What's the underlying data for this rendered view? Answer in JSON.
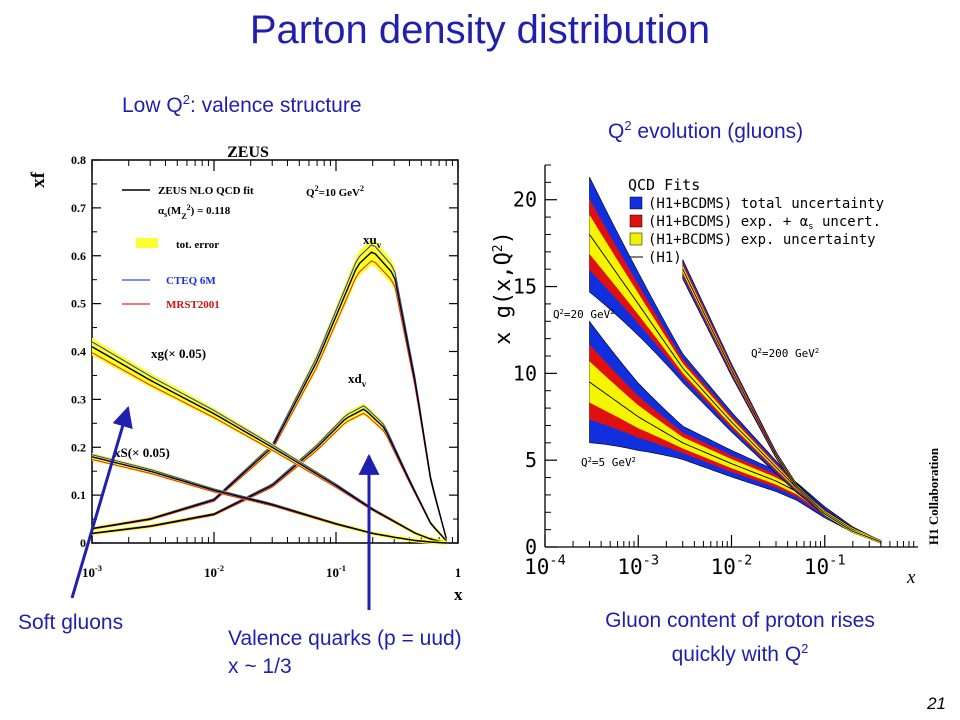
{
  "slide": {
    "title": "Parton density distribution",
    "left_subtitle_pre": "Low Q",
    "left_subtitle_sup": "2",
    "left_subtitle_post": ": valence structure",
    "right_subtitle_pre": "Q",
    "right_subtitle_sup": "2",
    "right_subtitle_post": " evolution (gluons)",
    "caption_soft": "Soft gluons",
    "caption_valence_1": "Valence quarks (p = uud)",
    "caption_valence_2": "x ~ 1/3",
    "caption_gluon_1": "Gluon content of proton rises",
    "caption_gluon_2_pre": "quickly with Q",
    "caption_gluon_2_sup": "2",
    "page_number": "21",
    "title_color": "#1f1fb0"
  },
  "chart_data": [
    {
      "type": "line",
      "title": "ZEUS",
      "ylabel": "xf",
      "xlabel": "x",
      "xscale": "log",
      "xlim": [
        0.001,
        1
      ],
      "ylim": [
        0,
        0.8
      ],
      "xticks": [
        "10^-3",
        "10^-2",
        "10^-1",
        "1"
      ],
      "yticks": [
        "0",
        "0.1",
        "0.2",
        "0.3",
        "0.4",
        "0.5",
        "0.6",
        "0.7",
        "0.8"
      ],
      "legend": {
        "fit": "ZEUS NLO QCD fit",
        "alpha_s": "αs(M²Z) = 0.118",
        "alpha_pre": "α",
        "alpha_sub": "s",
        "alpha_mid": "(M",
        "alpha_sup": "2",
        "alpha_sub2": "Z",
        "alpha_post": ") = 0.118",
        "error": "tot. error",
        "cteq": "CTEQ 6M",
        "mrst": "MRST2001",
        "q2_pre": "Q",
        "q2_sup": "2",
        "q2_post": "=10 GeV",
        "q2_sup2": "2",
        "q2": "Q²=10 GeV²"
      },
      "curve_labels": {
        "xuv": "xu",
        "xuv_sub": "v",
        "xdv": "xd",
        "xdv_sub": "v",
        "xg": "xg(× 0.05)",
        "xs": "xS(× 0.05)"
      },
      "series": [
        {
          "name": "xu_v",
          "x": [
            0.001,
            0.003,
            0.01,
            0.03,
            0.07,
            0.15,
            0.2,
            0.3,
            0.45,
            0.6,
            0.8
          ],
          "y": [
            0.03,
            0.05,
            0.09,
            0.2,
            0.38,
            0.58,
            0.61,
            0.56,
            0.33,
            0.13,
            0.01
          ]
        },
        {
          "name": "xd_v",
          "x": [
            0.001,
            0.003,
            0.01,
            0.03,
            0.07,
            0.12,
            0.17,
            0.25,
            0.4,
            0.6,
            0.8
          ],
          "y": [
            0.02,
            0.035,
            0.06,
            0.12,
            0.2,
            0.26,
            0.28,
            0.24,
            0.13,
            0.04,
            0.005
          ]
        },
        {
          "name": "xg(×0.05)",
          "x": [
            0.001,
            0.003,
            0.01,
            0.03,
            0.1,
            0.2,
            0.3,
            0.45,
            0.6,
            0.8
          ],
          "y": [
            0.41,
            0.34,
            0.27,
            0.2,
            0.12,
            0.07,
            0.045,
            0.02,
            0.008,
            0.001
          ]
        },
        {
          "name": "xS(×0.05)",
          "x": [
            0.001,
            0.003,
            0.01,
            0.03,
            0.1,
            0.2,
            0.3,
            0.45,
            0.6,
            0.8
          ],
          "y": [
            0.18,
            0.15,
            0.11,
            0.08,
            0.04,
            0.02,
            0.012,
            0.005,
            0.002,
            0.0
          ]
        }
      ]
    },
    {
      "type": "area",
      "title": "",
      "ylabel": "x g(x, Q²)",
      "ylabel_pre": "x g(x,Q",
      "ylabel_sup": "2",
      "ylabel_post": ")",
      "xlabel": "x",
      "xscale": "log",
      "xlim": [
        0.0001,
        1
      ],
      "ylim": [
        0,
        22
      ],
      "xticks": [
        "10^-4",
        "10^-3",
        "10^-2",
        "10^-1"
      ],
      "yticks": [
        "0",
        "5",
        "10",
        "15",
        "20"
      ],
      "side_label": "H1 Collaboration",
      "legend": {
        "header": "QCD Fits",
        "total": "(H1+BCDMS) total uncertainty",
        "exp_alpha": "(H1+BCDMS) exp. + αs uncert.",
        "exp_alpha_pre": "(H1+BCDMS) exp. + α",
        "exp_alpha_sub": "s",
        "exp_alpha_post": " uncert.",
        "exp": "(H1+BCDMS) exp. uncertainty",
        "h1": "(H1)",
        "colors": {
          "total": "#1030e0",
          "exp_alpha": "#e01010",
          "exp": "#f0f000"
        }
      },
      "series": [
        {
          "name": "Q²=5 GeV²",
          "label_pre": "Q",
          "label_sup": "2",
          "label_post": "=5 GeV",
          "label_sup2": "2",
          "x": [
            0.0003,
            0.001,
            0.003,
            0.01,
            0.03,
            0.05,
            0.1,
            0.2,
            0.4
          ],
          "y": [
            9.5,
            7.5,
            6.0,
            4.8,
            3.8,
            3.2,
            2.0,
            1.0,
            0.3
          ]
        },
        {
          "name": "Q²=20 GeV²",
          "label_pre": "Q",
          "label_sup": "2",
          "label_post": "=20 GeV",
          "label_sup2": "2",
          "x": [
            0.0003,
            0.001,
            0.003,
            0.01,
            0.03,
            0.05,
            0.1,
            0.2,
            0.4
          ],
          "y": [
            18.0,
            14.0,
            10.3,
            7.2,
            4.6,
            3.4,
            2.0,
            1.0,
            0.3
          ]
        },
        {
          "name": "Q²=200 GeV²",
          "label_pre": "Q",
          "label_sup": "2",
          "label_post": "=200 GeV",
          "label_sup2": "2",
          "x": [
            0.003,
            0.01,
            0.03,
            0.05,
            0.1,
            0.2,
            0.4
          ],
          "y": [
            16.0,
            10.2,
            5.3,
            3.5,
            1.9,
            0.9,
            0.3
          ]
        }
      ]
    }
  ]
}
